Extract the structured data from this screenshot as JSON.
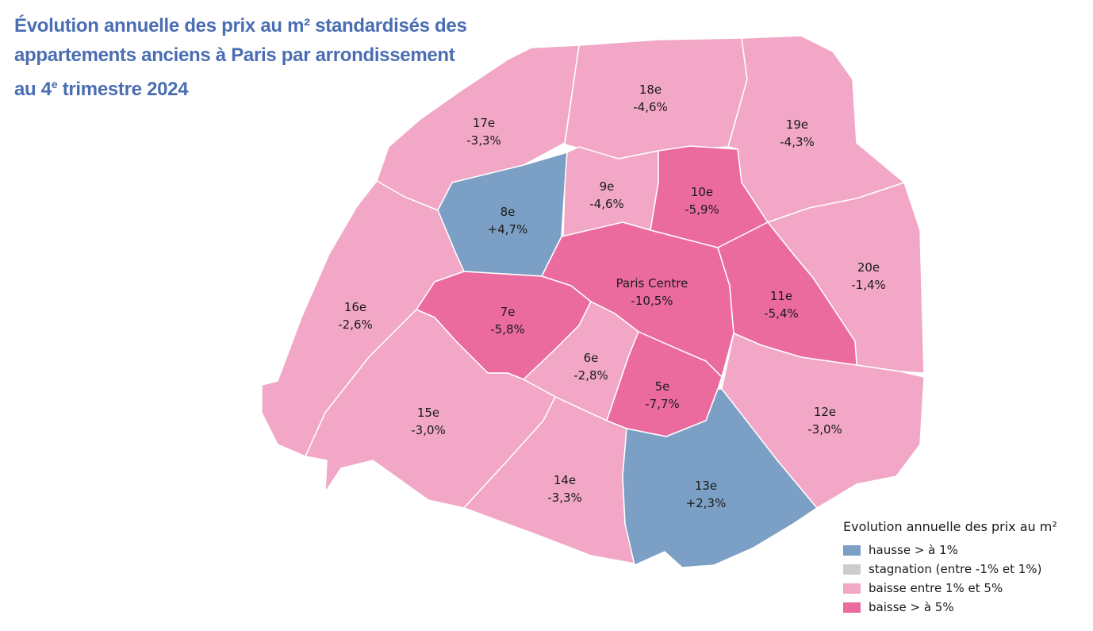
{
  "title": {
    "line1": "Évolution annuelle des prix au m² standardisés des",
    "line2": "appartements anciens à Paris par arrondissement",
    "line3_prefix": "au 4",
    "line3_sup": "e",
    "line3_suffix": " trimestre 2024"
  },
  "colors": {
    "hausse": "#7b9fc5",
    "stagnation": "#cccccc",
    "baisse_moderee": "#f1a7c5",
    "baisse_forte": "#eb6b9f"
  },
  "districts": [
    {
      "id": "17",
      "name": "17e",
      "value": "-3,3%",
      "category": "baisse_moderee"
    },
    {
      "id": "18",
      "name": "18e",
      "value": "-4,6%",
      "category": "baisse_moderee"
    },
    {
      "id": "19",
      "name": "19e",
      "value": "-4,3%",
      "category": "baisse_moderee"
    },
    {
      "id": "8",
      "name": "8e",
      "value": "+4,7%",
      "category": "hausse"
    },
    {
      "id": "9",
      "name": "9e",
      "value": "-4,6%",
      "category": "baisse_moderee"
    },
    {
      "id": "10",
      "name": "10e",
      "value": "-5,9%",
      "category": "baisse_forte"
    },
    {
      "id": "20",
      "name": "20e",
      "value": "-1,4%",
      "category": "baisse_moderee"
    },
    {
      "id": "16",
      "name": "16e",
      "value": "-2,6%",
      "category": "baisse_moderee"
    },
    {
      "id": "centre",
      "name": "Paris Centre",
      "value": "-10,5%",
      "category": "baisse_forte"
    },
    {
      "id": "7",
      "name": "7e",
      "value": "-5,8%",
      "category": "baisse_forte"
    },
    {
      "id": "11",
      "name": "11e",
      "value": "-5,4%",
      "category": "baisse_forte"
    },
    {
      "id": "6",
      "name": "6e",
      "value": "-2,8%",
      "category": "baisse_moderee"
    },
    {
      "id": "5",
      "name": "5e",
      "value": "-7,7%",
      "category": "baisse_forte"
    },
    {
      "id": "15",
      "name": "15e",
      "value": "-3,0%",
      "category": "baisse_moderee"
    },
    {
      "id": "12",
      "name": "12e",
      "value": "-3,0%",
      "category": "baisse_moderee"
    },
    {
      "id": "14",
      "name": "14e",
      "value": "-3,3%",
      "category": "baisse_moderee"
    },
    {
      "id": "13",
      "name": "13e",
      "value": "+2,3%",
      "category": "hausse"
    }
  ],
  "legend": {
    "title": "Evolution annuelle des prix au m²",
    "items": [
      {
        "label": "hausse > à 1%",
        "category": "hausse"
      },
      {
        "label": "stagnation (entre -1% et 1%)",
        "category": "stagnation"
      },
      {
        "label": "baisse entre 1% et 5%",
        "category": "baisse_moderee"
      },
      {
        "label": "baisse > à 5%",
        "category": "baisse_forte"
      }
    ]
  }
}
